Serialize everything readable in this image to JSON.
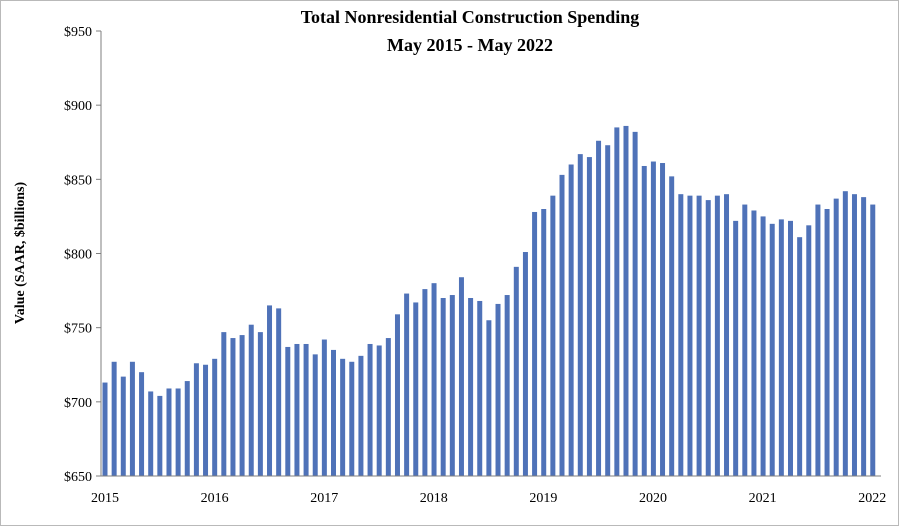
{
  "chart_data": {
    "type": "bar",
    "title": "Total Nonresidential Construction Spending",
    "subtitle": "May 2015 - May 2022",
    "xlabel": "",
    "ylabel": "Value (SAAR, $billions)",
    "ylim": [
      650,
      950
    ],
    "y_ticks": [
      "$650",
      "$700",
      "$750",
      "$800",
      "$850",
      "$900",
      "$950"
    ],
    "y_tick_values": [
      650,
      700,
      750,
      800,
      850,
      900,
      950
    ],
    "x_ticks": [
      "2015",
      "2016",
      "2017",
      "2018",
      "2019",
      "2020",
      "2021",
      "2022"
    ],
    "grid": false,
    "legend": "none",
    "bar_color": "#4f72b8",
    "values": [
      713,
      727,
      717,
      727,
      720,
      707,
      704,
      709,
      709,
      714,
      726,
      725,
      729,
      747,
      743,
      745,
      752,
      747,
      765,
      763,
      737,
      739,
      739,
      732,
      742,
      735,
      729,
      727,
      731,
      739,
      738,
      743,
      759,
      773,
      767,
      776,
      780,
      770,
      772,
      784,
      770,
      768,
      755,
      766,
      772,
      791,
      801,
      828,
      830,
      839,
      853,
      860,
      867,
      865,
      876,
      873,
      885,
      886,
      882,
      859,
      862,
      861,
      852,
      840,
      839,
      839,
      836,
      839,
      840,
      822,
      833,
      829,
      825,
      820,
      823,
      822,
      811,
      819,
      833,
      830,
      837,
      842,
      840,
      838,
      833
    ]
  }
}
